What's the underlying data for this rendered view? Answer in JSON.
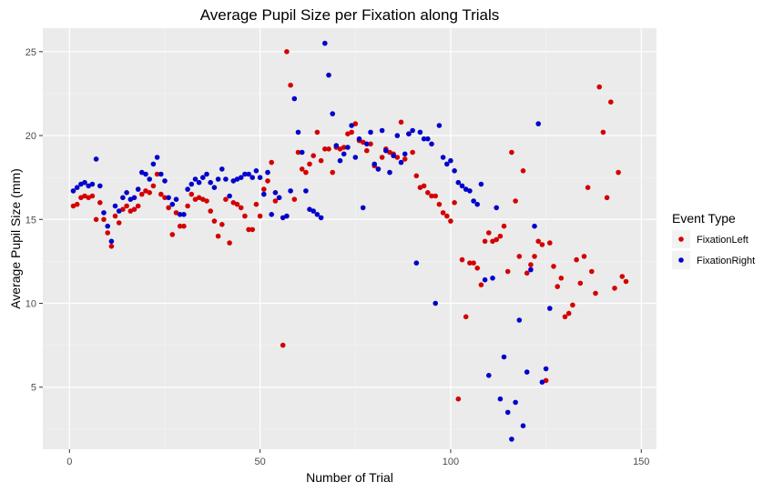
{
  "chart_data": {
    "type": "scatter",
    "title": "Average Pupil Size per Fixation along Trials",
    "xlabel": "Number of Trial",
    "ylabel": "Average Pupil Size (mm)",
    "xlim": [
      -7,
      154
    ],
    "ylim": [
      1.3,
      26.4
    ],
    "x_ticks": [
      0,
      50,
      100,
      150
    ],
    "y_ticks": [
      5,
      10,
      15,
      20,
      25
    ],
    "grid": true,
    "legend": {
      "title": "Event Type",
      "placement": "right"
    },
    "series": [
      {
        "name": "FixationLeft",
        "color": "#d40000",
        "points": [
          [
            1,
            15.8
          ],
          [
            2,
            15.9
          ],
          [
            3,
            16.3
          ],
          [
            4,
            16.4
          ],
          [
            5,
            16.3
          ],
          [
            6,
            16.4
          ],
          [
            7,
            15.0
          ],
          [
            8,
            16.0
          ],
          [
            9,
            15.0
          ],
          [
            10,
            14.2
          ],
          [
            11,
            13.4
          ],
          [
            12,
            15.2
          ],
          [
            13,
            14.8
          ],
          [
            14,
            15.6
          ],
          [
            15,
            15.8
          ],
          [
            16,
            15.5
          ],
          [
            17,
            15.6
          ],
          [
            18,
            15.8
          ],
          [
            19,
            16.5
          ],
          [
            20,
            16.7
          ],
          [
            21,
            16.6
          ],
          [
            22,
            17.0
          ],
          [
            23,
            17.7
          ],
          [
            24,
            16.5
          ],
          [
            25,
            16.3
          ],
          [
            26,
            15.7
          ],
          [
            27,
            14.1
          ],
          [
            28,
            15.4
          ],
          [
            29,
            14.6
          ],
          [
            30,
            14.6
          ],
          [
            31,
            15.8
          ],
          [
            32,
            16.5
          ],
          [
            33,
            16.2
          ],
          [
            34,
            16.3
          ],
          [
            35,
            16.2
          ],
          [
            36,
            16.1
          ],
          [
            37,
            15.5
          ],
          [
            38,
            14.9
          ],
          [
            39,
            14.0
          ],
          [
            40,
            14.7
          ],
          [
            41,
            16.2
          ],
          [
            42,
            13.6
          ],
          [
            43,
            16.0
          ],
          [
            44,
            15.9
          ],
          [
            45,
            15.7
          ],
          [
            46,
            15.2
          ],
          [
            47,
            14.4
          ],
          [
            48,
            14.4
          ],
          [
            49,
            15.9
          ],
          [
            50,
            15.2
          ],
          [
            51,
            16.8
          ],
          [
            52,
            17.3
          ],
          [
            53,
            18.4
          ],
          [
            54,
            16.1
          ],
          [
            55,
            16.3
          ],
          [
            56,
            7.5
          ],
          [
            57,
            25.0
          ],
          [
            58,
            23.0
          ],
          [
            59,
            16.2
          ],
          [
            60,
            19.0
          ],
          [
            61,
            18.0
          ],
          [
            62,
            17.8
          ],
          [
            63,
            18.3
          ],
          [
            64,
            18.8
          ],
          [
            65,
            20.2
          ],
          [
            66,
            18.5
          ],
          [
            67,
            19.2
          ],
          [
            68,
            19.2
          ],
          [
            69,
            17.8
          ],
          [
            70,
            19.3
          ],
          [
            71,
            19.2
          ],
          [
            72,
            19.3
          ],
          [
            73,
            20.1
          ],
          [
            74,
            20.2
          ],
          [
            75,
            20.7
          ],
          [
            76,
            19.7
          ],
          [
            77,
            19.6
          ],
          [
            78,
            19.1
          ],
          [
            79,
            19.5
          ],
          [
            80,
            18.2
          ],
          [
            81,
            18.0
          ],
          [
            82,
            18.7
          ],
          [
            83,
            19.2
          ],
          [
            84,
            19.0
          ],
          [
            85,
            18.9
          ],
          [
            86,
            18.7
          ],
          [
            87,
            20.8
          ],
          [
            88,
            18.6
          ],
          [
            89,
            20.1
          ],
          [
            90,
            19.0
          ],
          [
            91,
            17.6
          ],
          [
            92,
            16.9
          ],
          [
            93,
            17.0
          ],
          [
            94,
            16.6
          ],
          [
            95,
            16.4
          ],
          [
            96,
            16.4
          ],
          [
            97,
            15.9
          ],
          [
            98,
            15.4
          ],
          [
            99,
            15.2
          ],
          [
            100,
            14.9
          ],
          [
            101,
            16.0
          ],
          [
            102,
            4.3
          ],
          [
            103,
            12.6
          ],
          [
            104,
            9.2
          ],
          [
            105,
            12.4
          ],
          [
            106,
            12.4
          ],
          [
            107,
            12.1
          ],
          [
            108,
            11.1
          ],
          [
            109,
            13.7
          ],
          [
            110,
            14.2
          ],
          [
            111,
            13.7
          ],
          [
            112,
            13.8
          ],
          [
            113,
            14.0
          ],
          [
            114,
            14.6
          ],
          [
            115,
            11.9
          ],
          [
            116,
            19.0
          ],
          [
            117,
            16.1
          ],
          [
            118,
            12.8
          ],
          [
            119,
            17.9
          ],
          [
            120,
            11.8
          ],
          [
            121,
            12.3
          ],
          [
            122,
            12.8
          ],
          [
            123,
            13.7
          ],
          [
            124,
            13.5
          ],
          [
            125,
            5.4
          ],
          [
            126,
            13.6
          ],
          [
            127,
            12.2
          ],
          [
            128,
            11.0
          ],
          [
            129,
            11.5
          ],
          [
            130,
            9.2
          ],
          [
            131,
            9.4
          ],
          [
            132,
            9.9
          ],
          [
            133,
            12.6
          ],
          [
            134,
            11.2
          ],
          [
            135,
            12.8
          ],
          [
            136,
            16.9
          ],
          [
            137,
            11.9
          ],
          [
            138,
            10.6
          ],
          [
            139,
            22.9
          ],
          [
            140,
            20.2
          ],
          [
            141,
            16.3
          ],
          [
            142,
            22.0
          ],
          [
            143,
            10.9
          ],
          [
            144,
            17.8
          ],
          [
            145,
            11.6
          ],
          [
            146,
            11.3
          ]
        ]
      },
      {
        "name": "FixationRight",
        "color": "#0000cc",
        "points": [
          [
            1,
            16.7
          ],
          [
            2,
            16.9
          ],
          [
            3,
            17.1
          ],
          [
            4,
            17.2
          ],
          [
            5,
            17.0
          ],
          [
            6,
            17.1
          ],
          [
            7,
            18.6
          ],
          [
            8,
            17.0
          ],
          [
            9,
            15.4
          ],
          [
            10,
            14.6
          ],
          [
            11,
            13.7
          ],
          [
            12,
            15.8
          ],
          [
            13,
            15.5
          ],
          [
            14,
            16.3
          ],
          [
            15,
            16.6
          ],
          [
            16,
            16.2
          ],
          [
            17,
            16.3
          ],
          [
            18,
            16.8
          ],
          [
            19,
            17.8
          ],
          [
            20,
            17.7
          ],
          [
            21,
            17.4
          ],
          [
            22,
            18.3
          ],
          [
            23,
            18.7
          ],
          [
            24,
            17.7
          ],
          [
            25,
            17.3
          ],
          [
            26,
            16.3
          ],
          [
            27,
            15.9
          ],
          [
            28,
            16.2
          ],
          [
            29,
            15.3
          ],
          [
            30,
            15.3
          ],
          [
            31,
            16.8
          ],
          [
            32,
            17.1
          ],
          [
            33,
            17.4
          ],
          [
            34,
            17.2
          ],
          [
            35,
            17.5
          ],
          [
            36,
            17.7
          ],
          [
            37,
            17.2
          ],
          [
            38,
            16.9
          ],
          [
            39,
            17.4
          ],
          [
            40,
            18.0
          ],
          [
            41,
            17.4
          ],
          [
            42,
            16.4
          ],
          [
            43,
            17.3
          ],
          [
            44,
            17.4
          ],
          [
            45,
            17.5
          ],
          [
            46,
            17.7
          ],
          [
            47,
            17.7
          ],
          [
            48,
            17.5
          ],
          [
            49,
            17.9
          ],
          [
            50,
            17.5
          ],
          [
            51,
            16.5
          ],
          [
            52,
            17.8
          ],
          [
            53,
            15.3
          ],
          [
            54,
            16.6
          ],
          [
            55,
            16.3
          ],
          [
            56,
            15.1
          ],
          [
            57,
            15.2
          ],
          [
            58,
            16.7
          ],
          [
            59,
            22.2
          ],
          [
            60,
            20.2
          ],
          [
            61,
            19.0
          ],
          [
            62,
            16.7
          ],
          [
            63,
            15.6
          ],
          [
            64,
            15.5
          ],
          [
            65,
            15.3
          ],
          [
            66,
            15.1
          ],
          [
            67,
            25.5
          ],
          [
            68,
            23.6
          ],
          [
            69,
            21.3
          ],
          [
            70,
            19.4
          ],
          [
            71,
            18.5
          ],
          [
            72,
            18.9
          ],
          [
            73,
            19.3
          ],
          [
            74,
            20.6
          ],
          [
            75,
            18.7
          ],
          [
            76,
            19.8
          ],
          [
            77,
            15.7
          ],
          [
            78,
            19.5
          ],
          [
            79,
            20.2
          ],
          [
            80,
            18.3
          ],
          [
            81,
            18.0
          ],
          [
            82,
            20.3
          ],
          [
            83,
            19.1
          ],
          [
            84,
            17.8
          ],
          [
            85,
            18.8
          ],
          [
            86,
            20.0
          ],
          [
            87,
            18.4
          ],
          [
            88,
            18.9
          ],
          [
            89,
            20.1
          ],
          [
            90,
            20.3
          ],
          [
            91,
            12.4
          ],
          [
            92,
            20.2
          ],
          [
            93,
            19.8
          ],
          [
            94,
            19.8
          ],
          [
            95,
            19.5
          ],
          [
            96,
            10.0
          ],
          [
            97,
            20.6
          ],
          [
            98,
            18.7
          ],
          [
            99,
            18.3
          ],
          [
            100,
            18.5
          ],
          [
            101,
            17.9
          ],
          [
            102,
            17.2
          ],
          [
            103,
            17.0
          ],
          [
            104,
            16.8
          ],
          [
            105,
            16.7
          ],
          [
            106,
            16.1
          ],
          [
            107,
            15.9
          ],
          [
            108,
            17.1
          ],
          [
            109,
            11.4
          ],
          [
            110,
            5.7
          ],
          [
            111,
            11.5
          ],
          [
            112,
            15.7
          ],
          [
            113,
            4.3
          ],
          [
            114,
            6.8
          ],
          [
            115,
            3.5
          ],
          [
            116,
            1.9
          ],
          [
            117,
            4.1
          ],
          [
            118,
            9.0
          ],
          [
            119,
            2.7
          ],
          [
            120,
            5.9
          ],
          [
            121,
            12.0
          ],
          [
            122,
            14.6
          ],
          [
            123,
            20.7
          ],
          [
            124,
            5.3
          ],
          [
            125,
            6.1
          ],
          [
            126,
            9.7
          ]
        ]
      }
    ]
  }
}
